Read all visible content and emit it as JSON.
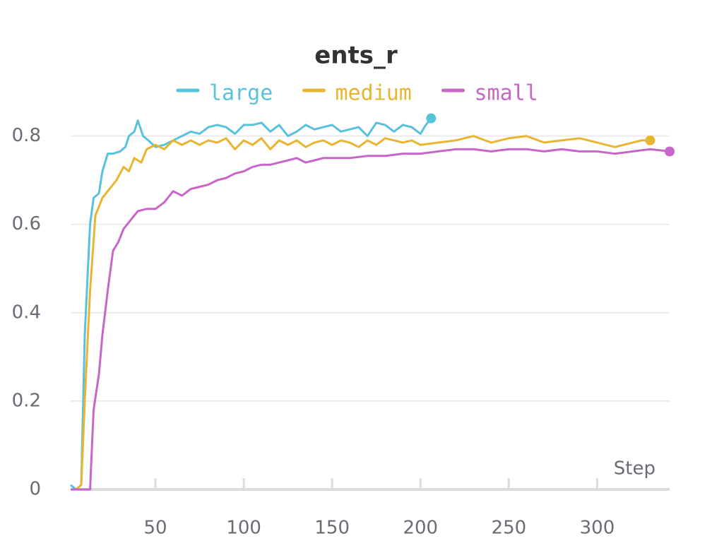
{
  "chart_data": {
    "type": "line",
    "title": "ents_r",
    "xlabel": "Step",
    "xlim": [
      2,
      341
    ],
    "ylim": [
      0,
      0.9
    ],
    "xticks": [
      50,
      100,
      150,
      200,
      250,
      300
    ],
    "yticks": [
      0,
      0.2,
      0.4,
      0.6,
      0.8
    ],
    "grid": true,
    "series": [
      {
        "name": "large",
        "color": "#58c2dc",
        "x": [
          2,
          5,
          8,
          10,
          13,
          15,
          18,
          20,
          23,
          26,
          30,
          33,
          35,
          38,
          40,
          43,
          46,
          50,
          55,
          60,
          65,
          70,
          75,
          80,
          85,
          90,
          95,
          100,
          105,
          110,
          115,
          120,
          125,
          130,
          135,
          140,
          145,
          150,
          155,
          160,
          165,
          170,
          175,
          180,
          185,
          190,
          195,
          200,
          203,
          206
        ],
        "values": [
          0.01,
          0.0,
          0.01,
          0.35,
          0.6,
          0.66,
          0.67,
          0.72,
          0.76,
          0.76,
          0.765,
          0.775,
          0.8,
          0.81,
          0.835,
          0.8,
          0.79,
          0.775,
          0.78,
          0.79,
          0.8,
          0.81,
          0.805,
          0.82,
          0.825,
          0.82,
          0.805,
          0.825,
          0.825,
          0.83,
          0.81,
          0.825,
          0.8,
          0.81,
          0.825,
          0.815,
          0.82,
          0.825,
          0.81,
          0.815,
          0.82,
          0.8,
          0.83,
          0.825,
          0.81,
          0.825,
          0.82,
          0.805,
          0.825,
          0.84
        ]
      },
      {
        "name": "medium",
        "color": "#e8b530",
        "x": [
          2,
          5,
          8,
          10,
          13,
          16,
          20,
          24,
          28,
          32,
          35,
          38,
          42,
          45,
          50,
          55,
          60,
          65,
          70,
          75,
          80,
          85,
          90,
          95,
          100,
          105,
          110,
          115,
          120,
          125,
          130,
          135,
          140,
          145,
          150,
          155,
          160,
          165,
          170,
          175,
          180,
          185,
          190,
          195,
          200,
          210,
          220,
          230,
          240,
          250,
          260,
          270,
          280,
          290,
          300,
          310,
          320,
          325,
          330
        ],
        "values": [
          0,
          0,
          0.01,
          0.2,
          0.45,
          0.62,
          0.66,
          0.68,
          0.7,
          0.73,
          0.72,
          0.75,
          0.74,
          0.77,
          0.78,
          0.77,
          0.79,
          0.78,
          0.79,
          0.78,
          0.79,
          0.785,
          0.795,
          0.77,
          0.79,
          0.78,
          0.795,
          0.77,
          0.79,
          0.78,
          0.79,
          0.775,
          0.785,
          0.79,
          0.78,
          0.79,
          0.785,
          0.775,
          0.79,
          0.78,
          0.795,
          0.79,
          0.785,
          0.79,
          0.78,
          0.785,
          0.79,
          0.8,
          0.785,
          0.795,
          0.8,
          0.785,
          0.79,
          0.795,
          0.785,
          0.775,
          0.785,
          0.79,
          0.79
        ]
      },
      {
        "name": "small",
        "color": "#c866c8",
        "x": [
          2,
          5,
          10,
          13,
          15,
          18,
          20,
          23,
          26,
          29,
          32,
          36,
          40,
          45,
          50,
          55,
          60,
          65,
          70,
          75,
          80,
          85,
          90,
          95,
          100,
          105,
          110,
          115,
          120,
          125,
          130,
          135,
          140,
          145,
          150,
          160,
          170,
          180,
          190,
          200,
          210,
          220,
          230,
          240,
          250,
          260,
          270,
          280,
          290,
          300,
          310,
          320,
          330,
          341
        ],
        "values": [
          0,
          0,
          0,
          0,
          0.18,
          0.26,
          0.35,
          0.45,
          0.54,
          0.56,
          0.59,
          0.61,
          0.63,
          0.635,
          0.635,
          0.65,
          0.675,
          0.665,
          0.68,
          0.685,
          0.69,
          0.7,
          0.705,
          0.715,
          0.72,
          0.73,
          0.735,
          0.735,
          0.74,
          0.745,
          0.75,
          0.74,
          0.745,
          0.75,
          0.75,
          0.75,
          0.755,
          0.755,
          0.76,
          0.76,
          0.765,
          0.77,
          0.77,
          0.765,
          0.77,
          0.77,
          0.765,
          0.77,
          0.765,
          0.765,
          0.76,
          0.765,
          0.77,
          0.765
        ]
      }
    ]
  }
}
